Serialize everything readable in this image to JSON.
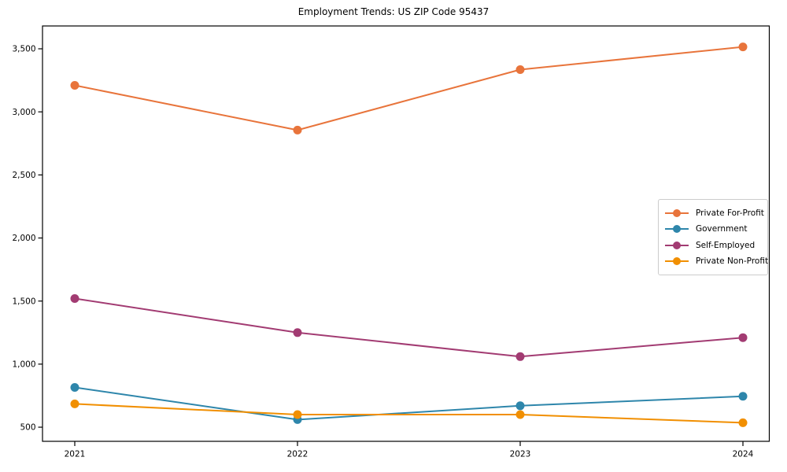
{
  "title": "Employment Trends: US ZIP Code 95437",
  "chart_data": {
    "type": "line",
    "title": "Employment Trends: US ZIP Code 95437",
    "xlabel": "",
    "ylabel": "",
    "categories": [
      "2021",
      "2022",
      "2023",
      "2024"
    ],
    "series": [
      {
        "name": "Private For-Profit",
        "color": "#E8743B",
        "values": [
          3210,
          2855,
          3335,
          3515
        ]
      },
      {
        "name": "Government",
        "color": "#2E86AB",
        "values": [
          815,
          560,
          670,
          745
        ]
      },
      {
        "name": "Self-Employed",
        "color": "#A23B72",
        "values": [
          1520,
          1250,
          1060,
          1210
        ]
      },
      {
        "name": "Private Non-Profit",
        "color": "#F18F01",
        "values": [
          685,
          600,
          600,
          535
        ]
      }
    ],
    "yticks": [
      500,
      1000,
      1500,
      2000,
      2500,
      3000,
      3500
    ],
    "ytick_labels": [
      "500",
      "1,000",
      "1,500",
      "2,000",
      "2,500",
      "3,000",
      "3,500"
    ],
    "ylim": [
      388,
      3681
    ],
    "grid": false,
    "legend_position": "center right",
    "marker": "circle",
    "line_width": 2,
    "marker_radius": 5.5
  },
  "colors": {
    "background": "#ffffff",
    "axis": "#000000",
    "tick_text": "#000000",
    "legend_border": "#cccccc",
    "legend_background": "#ffffff"
  }
}
